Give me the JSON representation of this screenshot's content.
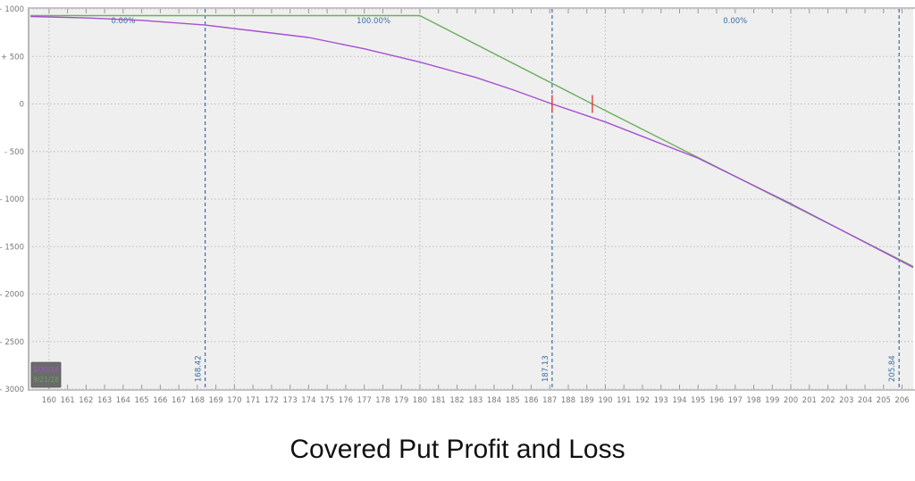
{
  "caption": "Covered Put Profit and Loss",
  "chart_data": {
    "type": "line",
    "title": "Covered Put Profit and Loss",
    "xlabel": "",
    "ylabel": "",
    "xlim": [
      158.9,
      206.6
    ],
    "ylim": [
      -3000,
      1000
    ],
    "x_ticks": [
      160,
      161,
      162,
      163,
      164,
      165,
      166,
      167,
      168,
      169,
      170,
      171,
      172,
      173,
      174,
      175,
      176,
      177,
      178,
      179,
      180,
      181,
      182,
      183,
      184,
      185,
      186,
      187,
      188,
      189,
      190,
      191,
      192,
      193,
      194,
      195,
      196,
      197,
      198,
      199,
      200,
      201,
      202,
      203,
      204,
      205,
      206
    ],
    "y_ticks": [
      1000,
      500,
      0,
      -500,
      -1000,
      -1500,
      -2000,
      -2500,
      -3000
    ],
    "y_tick_labels": [
      "+ 1000",
      "+ 500",
      "0",
      "- 500",
      "- 1000",
      "- 1500",
      "- 2000",
      "- 2500",
      "- 3000"
    ],
    "grid": true,
    "series": [
      {
        "name": "5/30/18",
        "color": "#a64fd0",
        "x": [
          159,
          162,
          165,
          168.42,
          171,
          174,
          177,
          180,
          183,
          185,
          187.13,
          190,
          195,
          200,
          206.6
        ],
        "y": [
          920,
          905,
          880,
          830,
          770,
          700,
          580,
          440,
          280,
          150,
          0,
          -190,
          -570,
          -1050,
          -1720
        ]
      },
      {
        "name": "9/21/18",
        "color": "#6aaf5e",
        "x": [
          159,
          180,
          189.3,
          206.6
        ],
        "y": [
          930,
          930,
          0,
          -1710
        ]
      }
    ],
    "vertical_markers": [
      {
        "x": 168.42,
        "label": "168.42",
        "style": "dashed",
        "color": "#3a6ea5"
      },
      {
        "x": 187.13,
        "label": "187.13",
        "style": "dashed",
        "color": "#3a6ea5"
      },
      {
        "x": 205.84,
        "label": "205.84",
        "style": "dashed",
        "color": "#3a6ea5"
      }
    ],
    "region_labels": [
      {
        "x": 164,
        "label": "0.00%"
      },
      {
        "x": 177.5,
        "label": "100.00%"
      },
      {
        "x": 197,
        "label": "0.00%"
      }
    ],
    "breakeven_ticks": [
      {
        "x": 187.13,
        "y": 0,
        "color": "#e03030"
      },
      {
        "x": 189.3,
        "y": 0,
        "color": "#e03030"
      }
    ],
    "legend": {
      "position": "bottom-left",
      "entries": [
        {
          "label": "5/30/18",
          "color": "#a64fd0"
        },
        {
          "label": "9/21/18",
          "color": "#5fa857"
        }
      ]
    }
  }
}
